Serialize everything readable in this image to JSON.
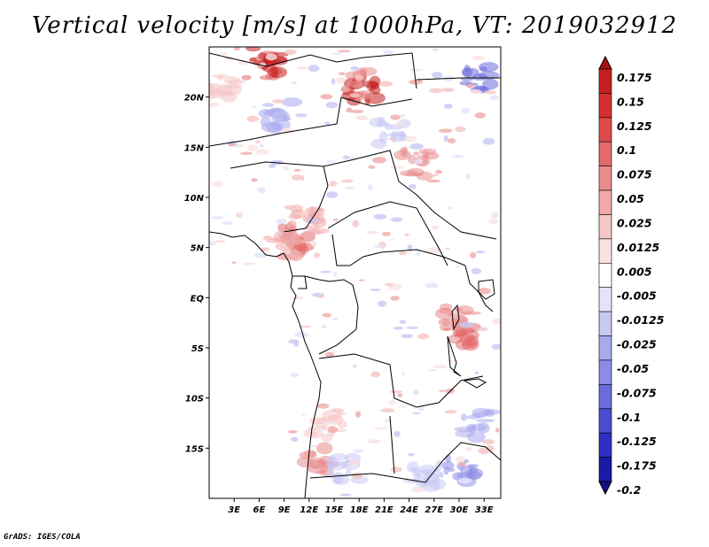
{
  "chart_data": {
    "type": "heatmap",
    "title": "Vertical velocity [m/s] at 1000hPa, VT: 2019032912",
    "x_ticks": [
      "3E",
      "6E",
      "9E",
      "12E",
      "15E",
      "18E",
      "21E",
      "24E",
      "27E",
      "30E",
      "33E"
    ],
    "y_ticks": [
      "20N",
      "15N",
      "10N",
      "5N",
      "EQ",
      "5S",
      "10S",
      "15S"
    ],
    "xlim": [
      0,
      35
    ],
    "ylim": [
      -20,
      25
    ],
    "colorbar": {
      "levels": [
        "0.175",
        "0.15",
        "0.125",
        "0.1",
        "0.075",
        "0.05",
        "0.025",
        "0.0125",
        "0.005",
        "-0.005",
        "-0.0125",
        "-0.025",
        "-0.05",
        "-0.075",
        "-0.1",
        "-0.125",
        "-0.175",
        "-0.2"
      ],
      "colors": [
        "#a51515",
        "#c41f1f",
        "#d43030",
        "#dd4a4a",
        "#e46a6a",
        "#ea8c8c",
        "#f0aaaa",
        "#f5c6c6",
        "#fae2e2",
        "#ffffff",
        "#e3e3fb",
        "#c8c8f5",
        "#a9a9ee",
        "#8c8ce6",
        "#6b6bdc",
        "#4c4cd0",
        "#2f2fc2",
        "#1a1aa8",
        "#10108a"
      ]
    }
  },
  "credit": "GrADS: IGES/COLA"
}
